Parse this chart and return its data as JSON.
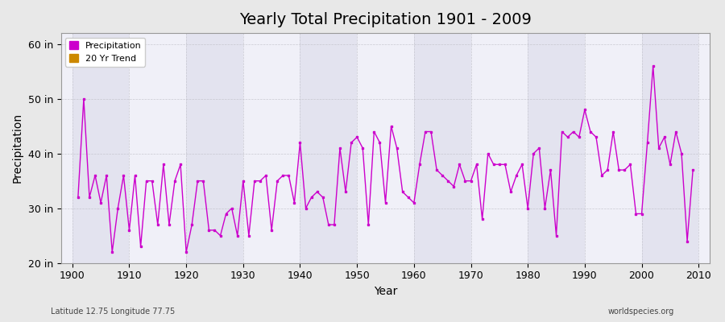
{
  "title": "Yearly Total Precipitation 1901 - 2009",
  "xlabel": "Year",
  "ylabel": "Precipitation",
  "lat_lon_label": "Latitude 12.75 Longitude 77.75",
  "credit_label": "worldspecies.org",
  "ylim": [
    20,
    62
  ],
  "yticks": [
    20,
    30,
    40,
    50,
    60
  ],
  "ytick_labels": [
    "20 in",
    "30 in",
    "40 in",
    "50 in",
    "60 in"
  ],
  "xlim": [
    1898,
    2012
  ],
  "xticks": [
    1900,
    1910,
    1920,
    1930,
    1940,
    1950,
    1960,
    1970,
    1980,
    1990,
    2000,
    2010
  ],
  "bg_outer": "#e8e8e8",
  "bg_inner": "#f0f0f8",
  "bg_inner2": "#e0e0ee",
  "line_color": "#cc00cc",
  "trend_color": "#cc8800",
  "years": [
    1901,
    1902,
    1903,
    1904,
    1905,
    1906,
    1907,
    1908,
    1909,
    1910,
    1911,
    1912,
    1913,
    1914,
    1915,
    1916,
    1917,
    1918,
    1919,
    1920,
    1921,
    1922,
    1923,
    1924,
    1925,
    1926,
    1927,
    1928,
    1929,
    1930,
    1931,
    1932,
    1933,
    1934,
    1935,
    1936,
    1937,
    1938,
    1939,
    1940,
    1941,
    1942,
    1943,
    1944,
    1945,
    1946,
    1947,
    1948,
    1949,
    1950,
    1951,
    1952,
    1953,
    1954,
    1955,
    1956,
    1957,
    1958,
    1959,
    1960,
    1961,
    1962,
    1963,
    1964,
    1965,
    1966,
    1967,
    1968,
    1969,
    1970,
    1971,
    1972,
    1973,
    1974,
    1975,
    1976,
    1977,
    1978,
    1979,
    1980,
    1981,
    1982,
    1983,
    1984,
    1985,
    1986,
    1987,
    1988,
    1989,
    1990,
    1991,
    1992,
    1993,
    1994,
    1995,
    1996,
    1997,
    1998,
    1999,
    2000,
    2001,
    2002,
    2003,
    2004,
    2005,
    2006,
    2007,
    2008,
    2009
  ],
  "precip": [
    32,
    50,
    32,
    36,
    31,
    36,
    22,
    30,
    36,
    26,
    36,
    23,
    35,
    35,
    27,
    38,
    27,
    35,
    38,
    22,
    27,
    35,
    35,
    26,
    26,
    25,
    29,
    30,
    25,
    35,
    25,
    35,
    35,
    36,
    26,
    35,
    36,
    36,
    31,
    42,
    30,
    32,
    33,
    32,
    27,
    27,
    41,
    33,
    42,
    43,
    41,
    27,
    44,
    42,
    31,
    45,
    41,
    33,
    32,
    31,
    38,
    44,
    44,
    37,
    36,
    35,
    34,
    38,
    35,
    35,
    38,
    28,
    40,
    38,
    38,
    38,
    33,
    36,
    38,
    30,
    40,
    41,
    30,
    37,
    25,
    44,
    43,
    44,
    43,
    48,
    44,
    43,
    36,
    37,
    44,
    37,
    37,
    38,
    29,
    29,
    42,
    56,
    41,
    43,
    38,
    44,
    40,
    24,
    37
  ]
}
